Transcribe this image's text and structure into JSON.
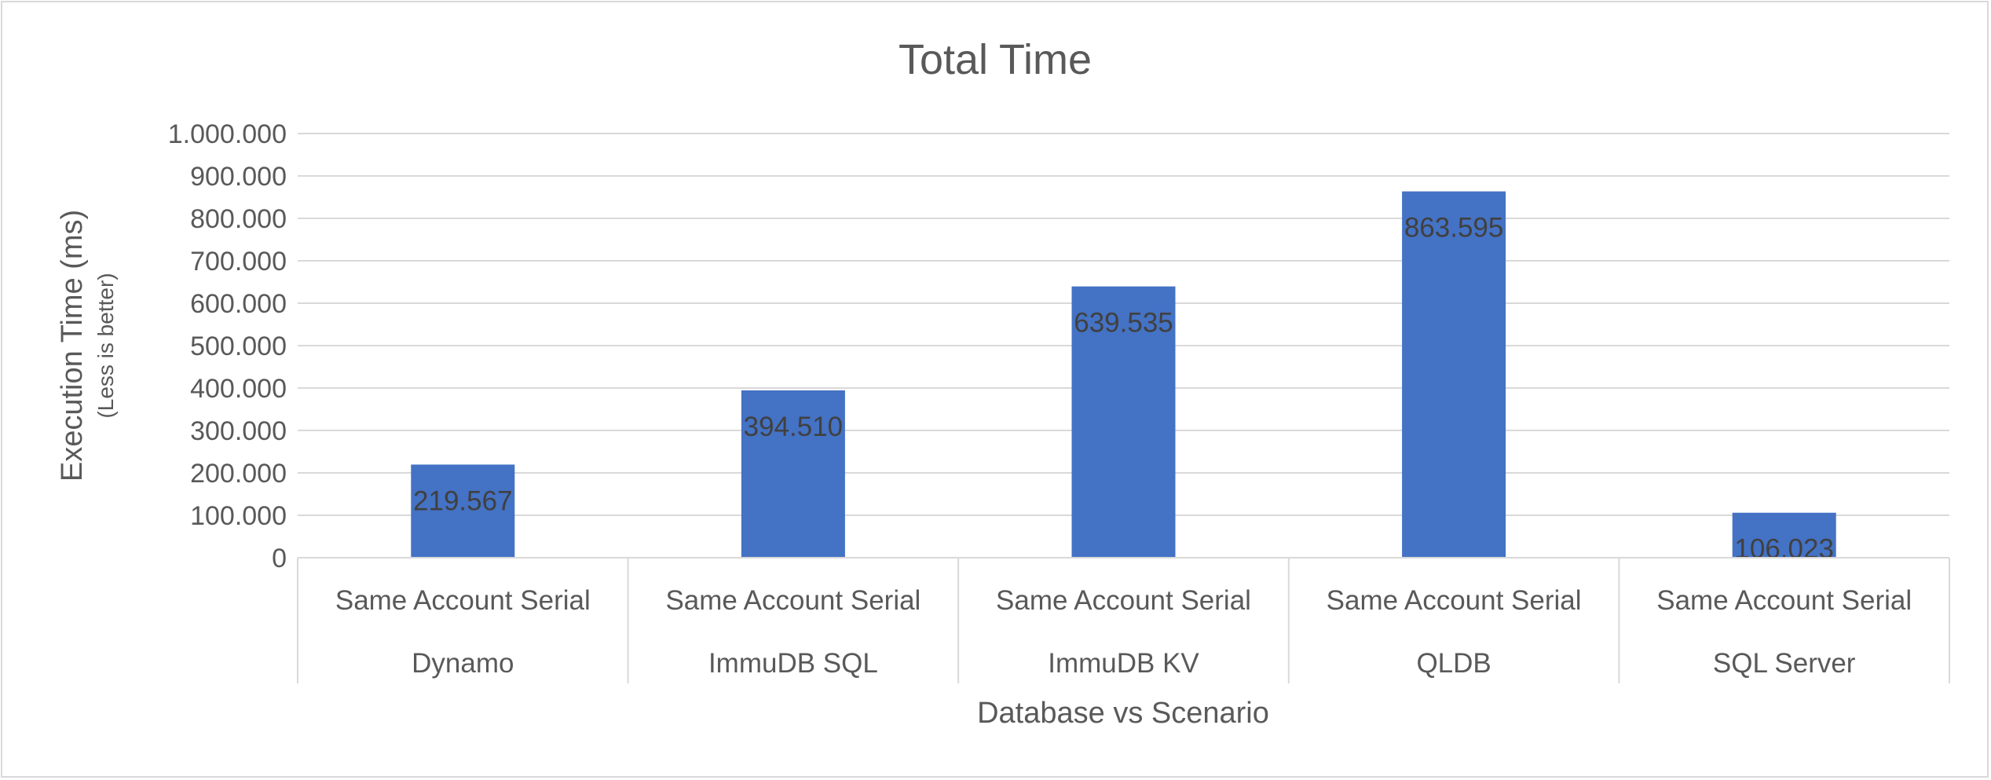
{
  "chart_data": {
    "type": "bar",
    "title": "Total Time",
    "xlabel": "Database vs Scenario",
    "ylabel": "Execution Time (ms)",
    "ylabel_sub": "(Less is better)",
    "ylim": [
      0,
      1000000
    ],
    "yticks": [
      0,
      100000,
      200000,
      300000,
      400000,
      500000,
      600000,
      700000,
      800000,
      900000,
      1000000
    ],
    "ytick_labels": [
      "0",
      "100.000",
      "200.000",
      "300.000",
      "400.000",
      "500.000",
      "600.000",
      "700.000",
      "800.000",
      "900.000",
      "1.000.000"
    ],
    "categories": [
      {
        "scenario": "Same Account Serial",
        "database": "Dynamo"
      },
      {
        "scenario": "Same Account Serial",
        "database": "ImmuDB SQL"
      },
      {
        "scenario": "Same Account Serial",
        "database": "ImmuDB KV"
      },
      {
        "scenario": "Same Account Serial",
        "database": "QLDB"
      },
      {
        "scenario": "Same Account Serial",
        "database": "SQL Server"
      }
    ],
    "values": [
      219567,
      394510,
      639535,
      863595,
      106023
    ],
    "data_labels": [
      "219.567",
      "394.510",
      "639.535",
      "863.595",
      "106.023"
    ],
    "grid": true,
    "legend": "none",
    "colors": {
      "bar": "#4472c4",
      "grid": "#d9d9d9",
      "text": "#595959"
    }
  }
}
